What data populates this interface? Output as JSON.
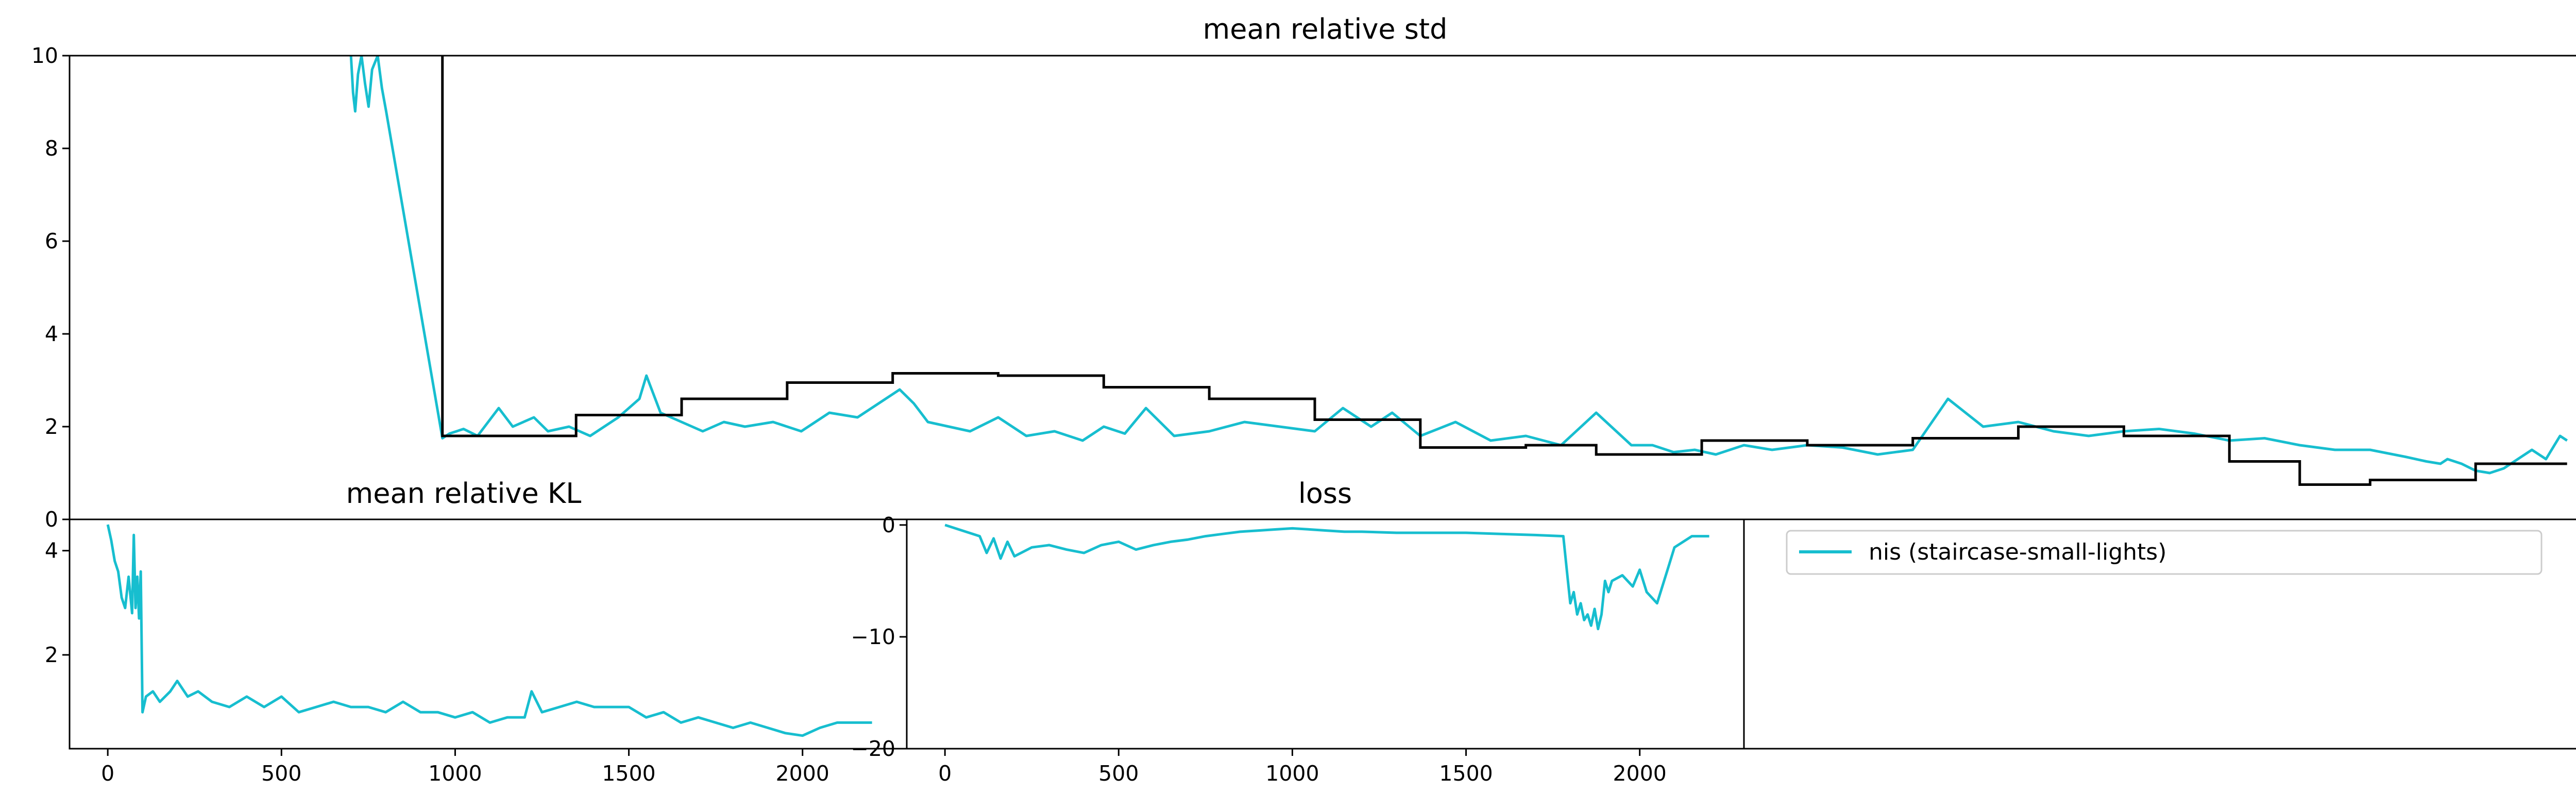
{
  "colors": {
    "series": "#17becf",
    "step": "#000000",
    "axis": "#000000",
    "legend_border": "#cccccc"
  },
  "chart_data": [
    {
      "type": "line",
      "title": "mean relative std",
      "xlabel": "",
      "ylabel": "",
      "xlim": [
        -20,
        3550
      ],
      "ylim": [
        0,
        10
      ],
      "x_ticks": [],
      "y_ticks": [
        0,
        2,
        4,
        6,
        8,
        10
      ],
      "grid": false,
      "series": [
        {
          "name": "nis (staircase-small-lights)",
          "style": "line",
          "x": [
            380,
            383,
            386,
            390,
            395,
            400,
            405,
            410,
            418,
            424,
            430,
            510,
            520,
            540,
            560,
            590,
            610,
            640,
            660,
            690,
            720,
            760,
            790,
            800,
            820,
            850,
            880,
            910,
            940,
            980,
            1020,
            1060,
            1100,
            1140,
            1160,
            1180,
            1200,
            1230,
            1260,
            1300,
            1340,
            1380,
            1420,
            1450,
            1480,
            1510,
            1550,
            1600,
            1650,
            1700,
            1750,
            1790,
            1830,
            1860,
            1900,
            1950,
            2000,
            2050,
            2100,
            2150,
            2200,
            2230,
            2260,
            2290,
            2320,
            2360,
            2400,
            2450,
            2500,
            2550,
            2600,
            2650,
            2700,
            2750,
            2800,
            2850,
            2900,
            2950,
            3000,
            3050,
            3100,
            3150,
            3200,
            3250,
            3300,
            3330,
            3350,
            3360,
            3380,
            3400,
            3420,
            3440,
            3460,
            3480,
            3500,
            3520,
            3530
          ],
          "values": [
            10,
            9.2,
            8.8,
            9.6,
            10,
            9.4,
            8.9,
            9.7,
            10,
            9.3,
            8.8,
            1.75,
            1.85,
            1.95,
            1.8,
            2.4,
            2.0,
            2.2,
            1.9,
            2.0,
            1.8,
            2.2,
            2.6,
            3.1,
            2.3,
            2.1,
            1.9,
            2.1,
            2.0,
            2.1,
            1.9,
            2.3,
            2.2,
            2.6,
            2.8,
            2.5,
            2.1,
            2.0,
            1.9,
            2.2,
            1.8,
            1.9,
            1.7,
            2.0,
            1.85,
            2.4,
            1.8,
            1.9,
            2.1,
            2.0,
            1.9,
            2.4,
            2.0,
            2.3,
            1.8,
            2.1,
            1.7,
            1.8,
            1.6,
            2.3,
            1.6,
            1.6,
            1.45,
            1.5,
            1.4,
            1.6,
            1.5,
            1.6,
            1.55,
            1.4,
            1.5,
            2.6,
            2.0,
            2.1,
            1.9,
            1.8,
            1.9,
            1.95,
            1.85,
            1.7,
            1.75,
            1.6,
            1.5,
            1.5,
            1.35,
            1.25,
            1.2,
            1.3,
            1.2,
            1.05,
            1.0,
            1.1,
            1.3,
            1.5,
            1.3,
            1.8,
            1.7
          ]
        },
        {
          "name": "",
          "style": "step",
          "color": "#000000",
          "steps": [
            [
              510,
              10
            ],
            [
              510,
              1.8
            ],
            [
              700,
              2.25
            ],
            [
              850,
              2.6
            ],
            [
              1000,
              2.95
            ],
            [
              1150,
              3.15
            ],
            [
              1300,
              3.1
            ],
            [
              1450,
              2.85
            ],
            [
              1600,
              2.6
            ],
            [
              1750,
              2.15
            ],
            [
              1900,
              1.55
            ],
            [
              2050,
              1.6
            ],
            [
              2150,
              1.4
            ],
            [
              2300,
              1.7
            ],
            [
              2450,
              1.6
            ],
            [
              2600,
              1.75
            ],
            [
              2750,
              2.0
            ],
            [
              2900,
              1.8
            ],
            [
              3050,
              1.25
            ],
            [
              3150,
              0.75
            ],
            [
              3250,
              0.85
            ],
            [
              3400,
              1.2
            ],
            [
              3530,
              1.2
            ]
          ]
        }
      ]
    },
    {
      "type": "line",
      "title": "mean relative KL",
      "xlabel": "",
      "ylabel": "",
      "xlim": [
        -110,
        2300
      ],
      "ylim": [
        0.2,
        4.6
      ],
      "x_ticks": [
        0,
        500,
        1000,
        1500,
        2000
      ],
      "y_ticks": [
        2,
        4
      ],
      "grid": false,
      "series": [
        {
          "name": "nis (staircase-small-lights)",
          "x": [
            0,
            10,
            20,
            30,
            40,
            50,
            60,
            70,
            75,
            80,
            85,
            90,
            95,
            100,
            110,
            130,
            150,
            180,
            200,
            230,
            260,
            300,
            350,
            400,
            450,
            500,
            550,
            600,
            650,
            700,
            750,
            800,
            850,
            900,
            950,
            1000,
            1050,
            1100,
            1150,
            1200,
            1220,
            1250,
            1300,
            1350,
            1400,
            1450,
            1500,
            1550,
            1600,
            1650,
            1700,
            1750,
            1800,
            1850,
            1900,
            1950,
            2000,
            2050,
            2100,
            2150,
            2200
          ],
          "values": [
            4.5,
            4.2,
            3.8,
            3.6,
            3.1,
            2.9,
            3.5,
            2.8,
            4.3,
            2.9,
            3.5,
            2.7,
            3.6,
            0.9,
            1.2,
            1.3,
            1.1,
            1.3,
            1.5,
            1.2,
            1.3,
            1.1,
            1.0,
            1.2,
            1.0,
            1.2,
            0.9,
            1.0,
            1.1,
            1.0,
            1.0,
            0.9,
            1.1,
            0.9,
            0.9,
            0.8,
            0.9,
            0.7,
            0.8,
            0.8,
            1.3,
            0.9,
            1.0,
            1.1,
            1.0,
            1.0,
            1.0,
            0.8,
            0.9,
            0.7,
            0.8,
            0.7,
            0.6,
            0.7,
            0.6,
            0.5,
            0.45,
            0.6,
            0.7,
            0.7,
            0.7
          ]
        }
      ]
    },
    {
      "type": "line",
      "title": "loss",
      "xlabel": "",
      "ylabel": "",
      "xlim": [
        -110,
        2300
      ],
      "ylim": [
        -20,
        0.5
      ],
      "x_ticks": [
        0,
        500,
        1000,
        1500,
        2000
      ],
      "y_ticks": [
        -20,
        -10,
        0
      ],
      "grid": false,
      "series": [
        {
          "name": "nis (staircase-small-lights)",
          "x": [
            0,
            50,
            100,
            120,
            140,
            160,
            180,
            200,
            250,
            300,
            350,
            400,
            450,
            500,
            550,
            600,
            650,
            700,
            750,
            800,
            850,
            900,
            950,
            1000,
            1050,
            1100,
            1150,
            1200,
            1300,
            1400,
            1500,
            1600,
            1700,
            1780,
            1790,
            1800,
            1810,
            1820,
            1830,
            1840,
            1850,
            1860,
            1870,
            1880,
            1890,
            1900,
            1910,
            1920,
            1950,
            1980,
            2000,
            2020,
            2050,
            2080,
            2100,
            2150,
            2200
          ],
          "values": [
            0,
            -0.5,
            -1,
            -2.5,
            -1.2,
            -3,
            -1.5,
            -2.8,
            -2,
            -1.8,
            -2.2,
            -2.5,
            -1.8,
            -1.5,
            -2.2,
            -1.8,
            -1.5,
            -1.3,
            -1,
            -0.8,
            -0.6,
            -0.5,
            -0.4,
            -0.3,
            -0.4,
            -0.5,
            -0.6,
            -0.6,
            -0.7,
            -0.7,
            -0.7,
            -0.8,
            -0.9,
            -1,
            -4,
            -7,
            -6,
            -8,
            -7,
            -8.5,
            -8,
            -9,
            -7.5,
            -9.3,
            -8,
            -5,
            -6,
            -5,
            -4.5,
            -5.5,
            -4,
            -6,
            -7,
            -4,
            -2,
            -1,
            -1
          ]
        }
      ]
    }
  ],
  "legend": {
    "entries": [
      "nis (staircase-small-lights)"
    ],
    "placement": "upper-left"
  }
}
